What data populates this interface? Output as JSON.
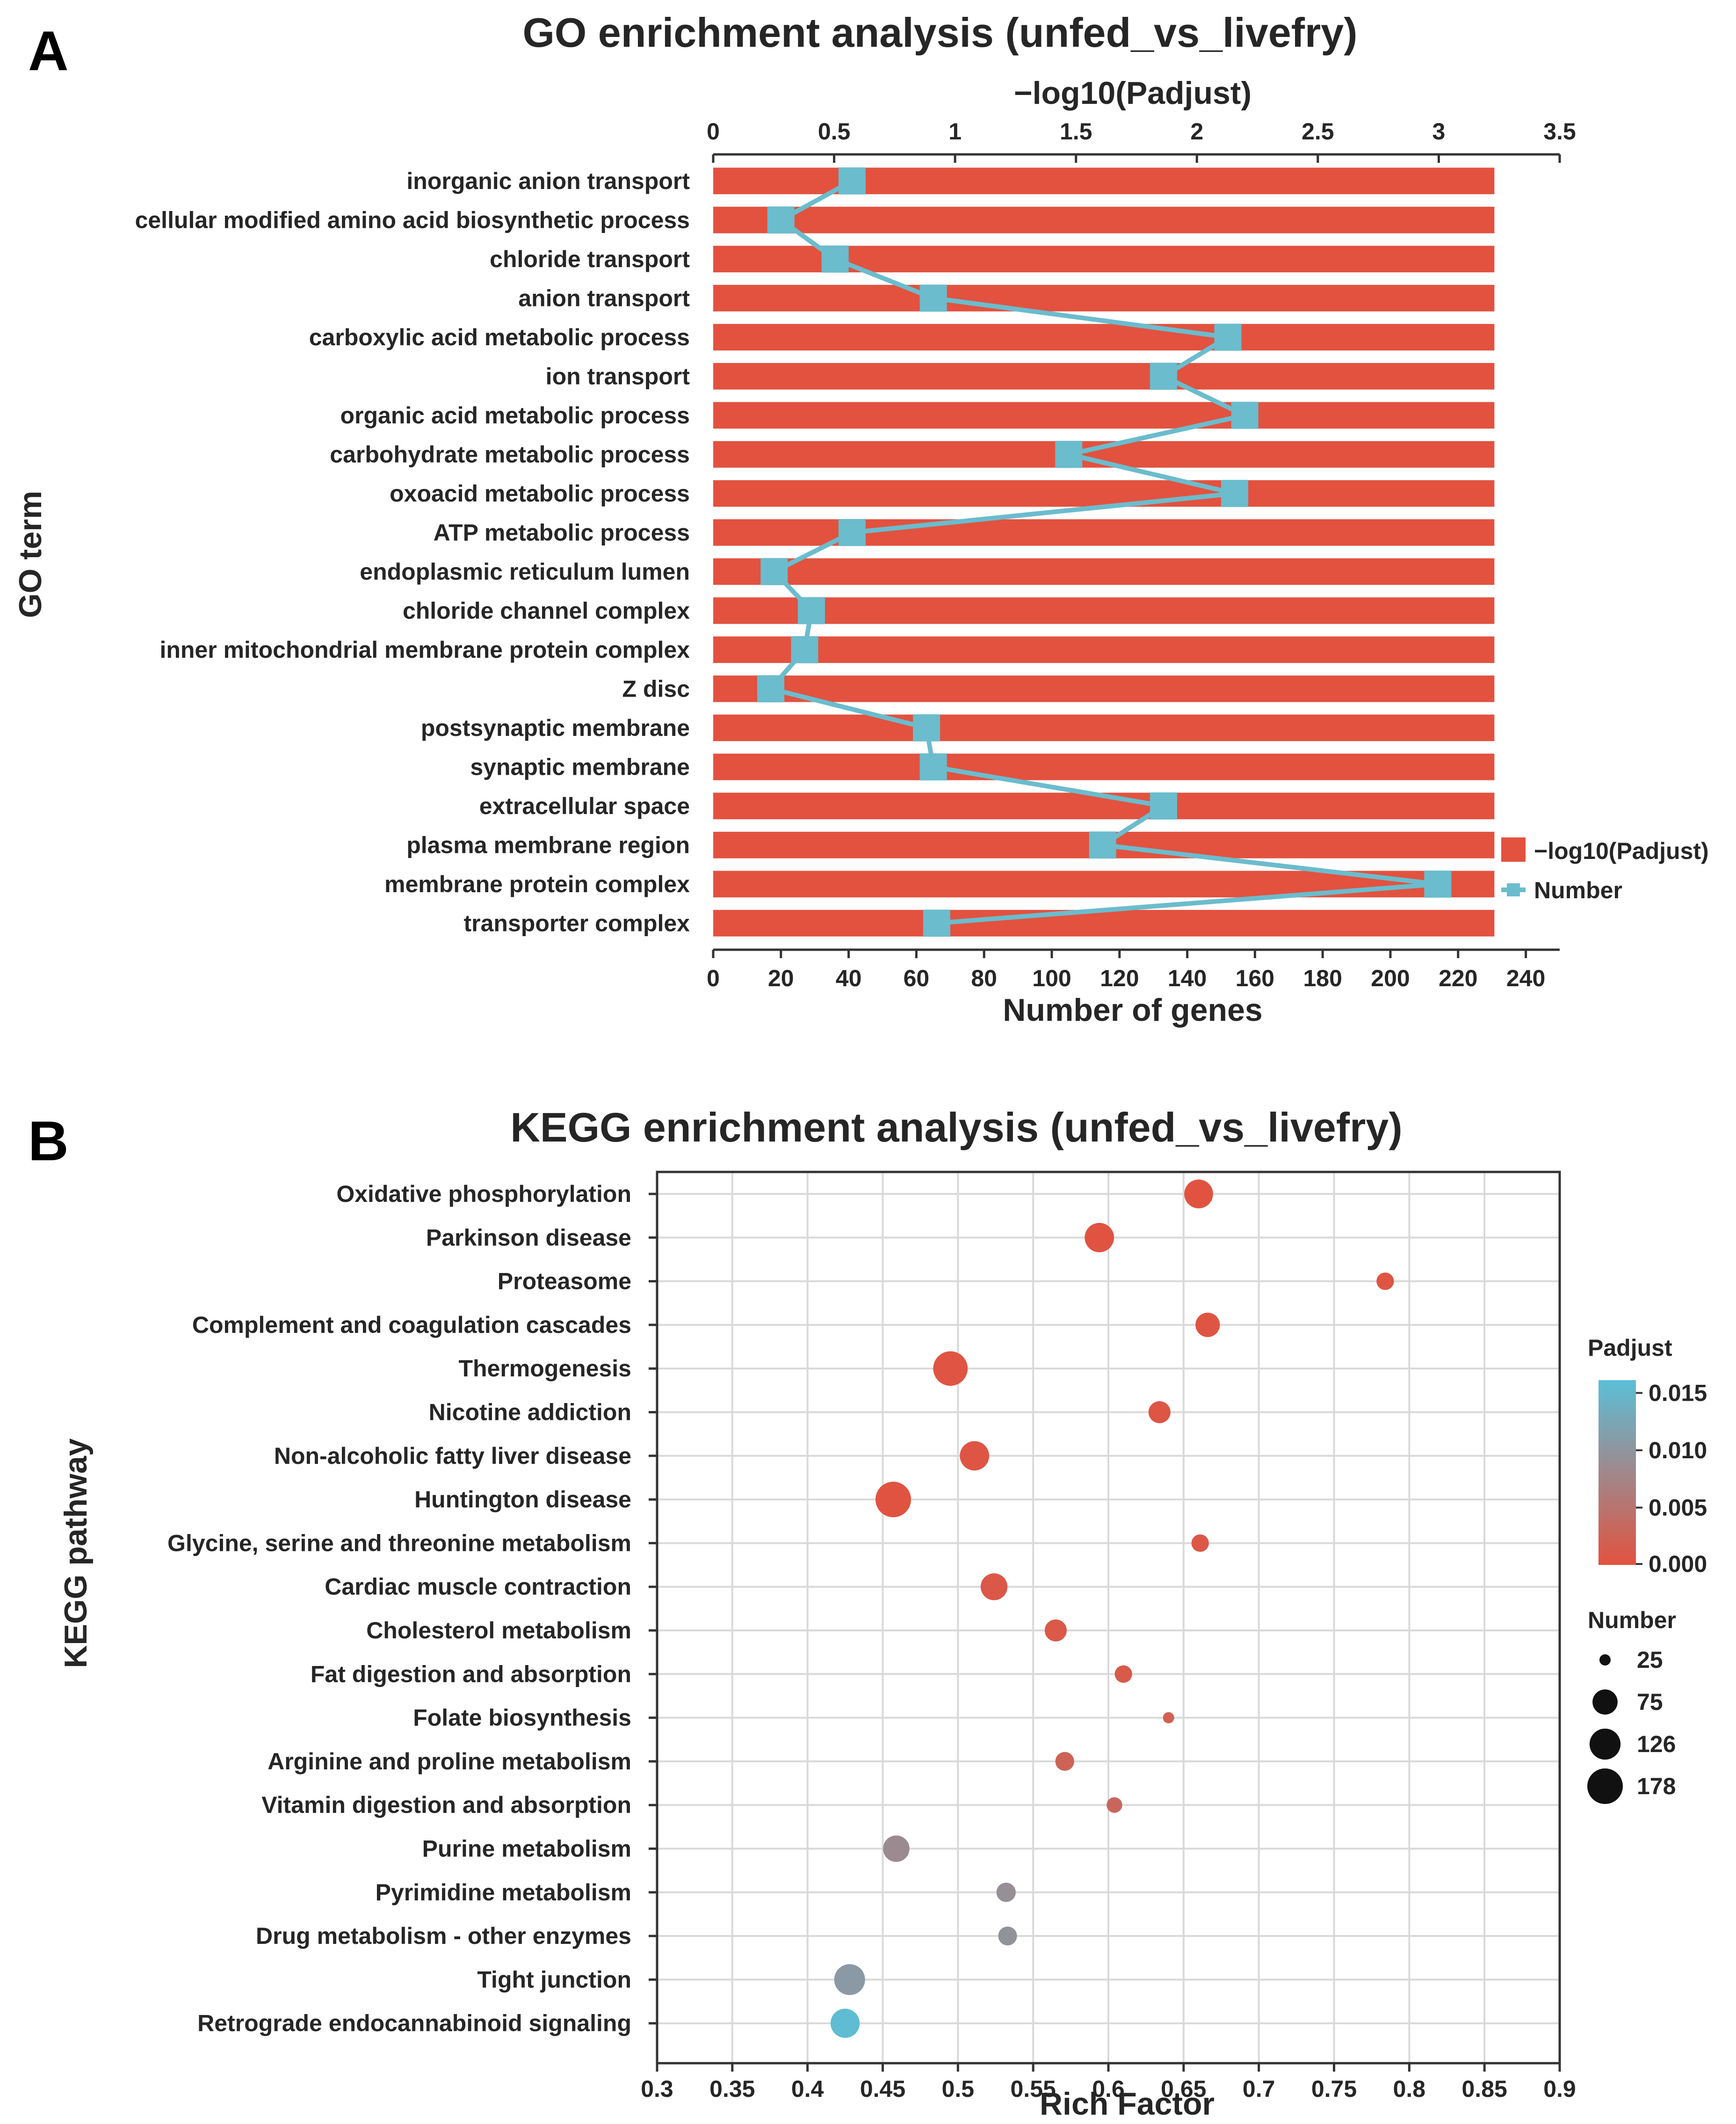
{
  "chart_data": [
    {
      "panel": "A",
      "type": "bar",
      "title": "GO enrichment analysis (unfed_vs_livefry)",
      "ylabel": "GO term",
      "xlabel": "Number of genes",
      "x2label": "−log10(Padjust)",
      "xlim": [
        0,
        250
      ],
      "xticks": [
        "0",
        "20",
        "40",
        "60",
        "80",
        "100",
        "120",
        "140",
        "160",
        "180",
        "200",
        "220",
        "240"
      ],
      "x2lim": [
        0,
        3.5
      ],
      "x2ticks": [
        "0",
        "0.5",
        "1",
        "1.5",
        "2",
        "2.5",
        "3",
        "3.5"
      ],
      "categories": [
        "inorganic anion transport",
        "cellular modified amino acid biosynthetic process",
        "chloride transport",
        "anion transport",
        "carboxylic acid metabolic process",
        "ion transport",
        "organic acid metabolic process",
        "carbohydrate metabolic process",
        "oxoacid metabolic process",
        "ATP metabolic process",
        "endoplasmic reticulum lumen",
        "chloride channel complex",
        "inner mitochondrial membrane protein complex",
        "Z disc",
        "postsynaptic membrane",
        "synaptic membrane",
        "extracellular space",
        "plasma membrane region",
        "membrane protein complex",
        "transporter complex"
      ],
      "series": [
        {
          "name": "−log10(Padjust)",
          "kind": "bar",
          "axis": "top",
          "color": "#e2523f",
          "values": [
            3.23,
            3.23,
            3.23,
            3.23,
            3.23,
            3.23,
            3.23,
            3.23,
            3.23,
            3.23,
            3.23,
            3.23,
            3.23,
            3.23,
            3.23,
            3.23,
            3.23,
            3.23,
            3.23,
            3.23
          ]
        },
        {
          "name": "Number",
          "kind": "line",
          "axis": "bottom",
          "color": "#6bbccd",
          "values": [
            41,
            20,
            36,
            65,
            152,
            133,
            157,
            105,
            154,
            41,
            18,
            29,
            27,
            17,
            63,
            65,
            133,
            115,
            214,
            66
          ]
        }
      ]
    },
    {
      "panel": "B",
      "type": "scatter",
      "title": "KEGG enrichment analysis (unfed_vs_livefry)",
      "ylabel": "KEGG pathway",
      "xlabel": "Rich Factor",
      "xlim": [
        0.3,
        0.9
      ],
      "xticks": [
        "0.3",
        "0.35",
        "0.4",
        "0.45",
        "0.5",
        "0.55",
        "0.6",
        "0.65",
        "0.7",
        "0.75",
        "0.8",
        "0.85",
        "0.9"
      ],
      "grid": true,
      "categories": [
        "Oxidative phosphorylation",
        "Parkinson disease",
        "Proteasome",
        "Complement and coagulation cascades",
        "Thermogenesis",
        "Nicotine addiction",
        "Non-alcoholic fatty liver disease",
        "Huntington disease",
        "Glycine, serine and threonine metabolism",
        "Cardiac muscle contraction",
        "Cholesterol metabolism",
        "Fat digestion and absorption",
        "Folate biosynthesis",
        "Arginine and proline metabolism",
        "Vitamin digestion and absorption",
        "Purine metabolism",
        "Pyrimidine metabolism",
        "Drug metabolism - other enzymes",
        "Tight junction",
        "Retrograde endocannabinoid signaling"
      ],
      "rich_factor": [
        0.66,
        0.594,
        0.784,
        0.666,
        0.495,
        0.634,
        0.511,
        0.457,
        0.661,
        0.524,
        0.565,
        0.61,
        0.64,
        0.571,
        0.604,
        0.459,
        0.532,
        0.533,
        0.428,
        0.425
      ],
      "number": [
        105,
        110,
        35,
        70,
        165,
        55,
        110,
        178,
        35,
        88,
        55,
        35,
        25,
        40,
        30,
        85,
        42,
        40,
        125,
        108
      ],
      "padjust": [
        0.0001,
        0.0002,
        0.0004,
        0.0004,
        0.0003,
        0.0005,
        0.0005,
        0.0002,
        0.0007,
        0.0008,
        0.001,
        0.0012,
        0.002,
        0.0025,
        0.003,
        0.0085,
        0.009,
        0.0095,
        0.0105,
        0.0155
      ],
      "legend": {
        "color_title": "Padjust",
        "color_ticks": [
          "0.015",
          "0.010",
          "0.005",
          "0.000"
        ],
        "color_low": "#e2523f",
        "color_mid": "#9f888c",
        "color_high": "#5bbfd8",
        "size_title": "Number",
        "size_values": [
          "25",
          "75",
          "126",
          "178"
        ]
      }
    }
  ],
  "panel_a_letter": "A",
  "panel_b_letter": "B"
}
